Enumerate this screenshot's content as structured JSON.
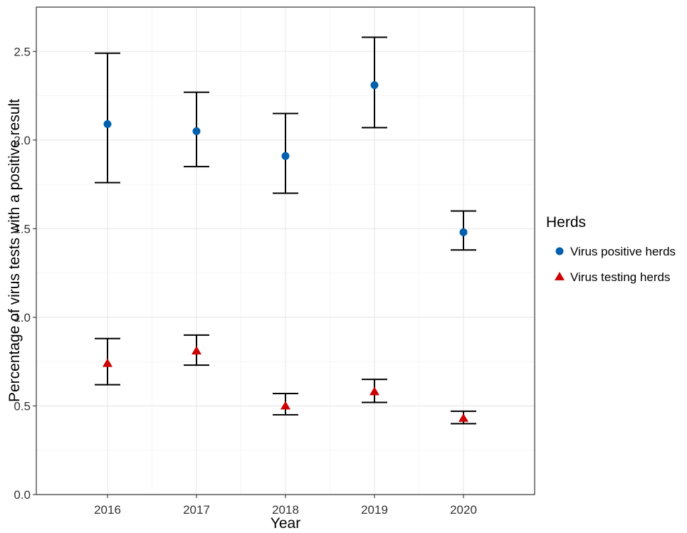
{
  "chart_data": {
    "type": "scatter",
    "title": "",
    "xlabel": "Year",
    "ylabel": "Percentage of virus tests with a positive result",
    "categories": [
      "2016",
      "2017",
      "2018",
      "2019",
      "2020"
    ],
    "ylim": [
      0,
      2.75
    ],
    "yticks": [
      "0.0",
      "0.5",
      "1.0",
      "1.5",
      "2.0",
      "2.5"
    ],
    "grid": true,
    "legend": {
      "title": "Herds",
      "position": "right"
    },
    "series": [
      {
        "name": "Virus positive herds",
        "marker": "circle",
        "color": "#0060AD",
        "values": [
          2.09,
          2.05,
          1.91,
          2.31,
          1.48
        ],
        "lower": [
          1.76,
          1.85,
          1.7,
          2.07,
          1.38
        ],
        "upper": [
          2.49,
          2.27,
          2.15,
          2.58,
          1.6
        ]
      },
      {
        "name": "Virus testing herds",
        "marker": "triangle",
        "color": "#CC0000",
        "values": [
          0.74,
          0.81,
          0.5,
          0.58,
          0.43
        ],
        "lower": [
          0.62,
          0.73,
          0.45,
          0.52,
          0.4
        ],
        "upper": [
          0.88,
          0.9,
          0.57,
          0.65,
          0.47
        ]
      }
    ]
  }
}
